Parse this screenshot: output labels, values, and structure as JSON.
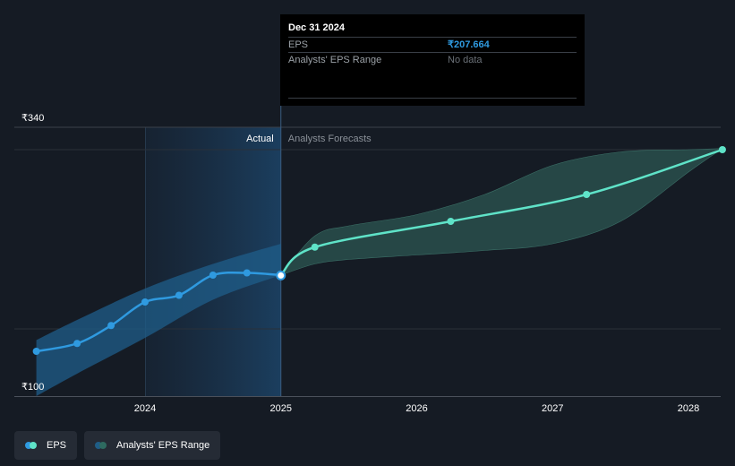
{
  "chart_data": {
    "type": "line",
    "currency_symbol": "₹",
    "y_tick_labels": [
      "₹340",
      "₹100"
    ],
    "y_ticks": [
      340,
      100
    ],
    "ylim": [
      100,
      340
    ],
    "x_tick_labels": [
      "2024",
      "2025",
      "2026",
      "2027",
      "2028"
    ],
    "x_ticks": [
      2024,
      2025,
      2026,
      2027,
      2028
    ],
    "xlim": [
      2023.2,
      2028.25
    ],
    "section_labels": {
      "actual": "Actual",
      "forecast": "Analysts Forecasts"
    },
    "divider_x": 2025,
    "series": [
      {
        "name": "EPS",
        "kind": "actual",
        "color": "#2f9ae0",
        "x": [
          2023.2,
          2023.5,
          2023.75,
          2024.0,
          2024.25,
          2024.5,
          2024.75,
          2025.0
        ],
        "values": [
          140,
          147,
          163,
          184,
          190,
          208,
          210,
          208
        ]
      },
      {
        "name": "EPS",
        "kind": "forecast",
        "color": "#5fe3c8",
        "x": [
          2025.0,
          2025.25,
          2026.25,
          2027.25,
          2028.25
        ],
        "values": [
          208,
          233,
          256,
          280,
          320
        ]
      }
    ],
    "actual_band": {
      "x": [
        2023.2,
        2023.5,
        2024.0,
        2024.5,
        2025.0
      ],
      "upper": [
        150,
        168,
        196,
        218,
        236
      ],
      "lower": [
        100,
        120,
        152,
        186,
        208
      ]
    },
    "forecast_band": {
      "x": [
        2025.0,
        2025.25,
        2025.5,
        2026.0,
        2026.5,
        2027.0,
        2027.5,
        2028.0,
        2028.25
      ],
      "upper": [
        208,
        243,
        252,
        262,
        280,
        306,
        318,
        320,
        321
      ],
      "lower": [
        208,
        218,
        222,
        226,
        230,
        236,
        256,
        300,
        321
      ]
    },
    "highlight_point": {
      "x": 2025.0,
      "value": 207.664
    }
  },
  "tooltip": {
    "date": "Dec 31 2024",
    "rows": [
      {
        "label": "EPS",
        "value": "₹207.664"
      },
      {
        "label": "Analysts' EPS Range",
        "value": "No data"
      }
    ]
  },
  "legend": {
    "items": [
      {
        "label": "EPS",
        "colors": [
          "#2f9ae0",
          "#5fe3c8"
        ]
      },
      {
        "label": "Analysts' EPS Range",
        "colors": [
          "#1f5d86",
          "#2e6a60"
        ]
      }
    ]
  }
}
